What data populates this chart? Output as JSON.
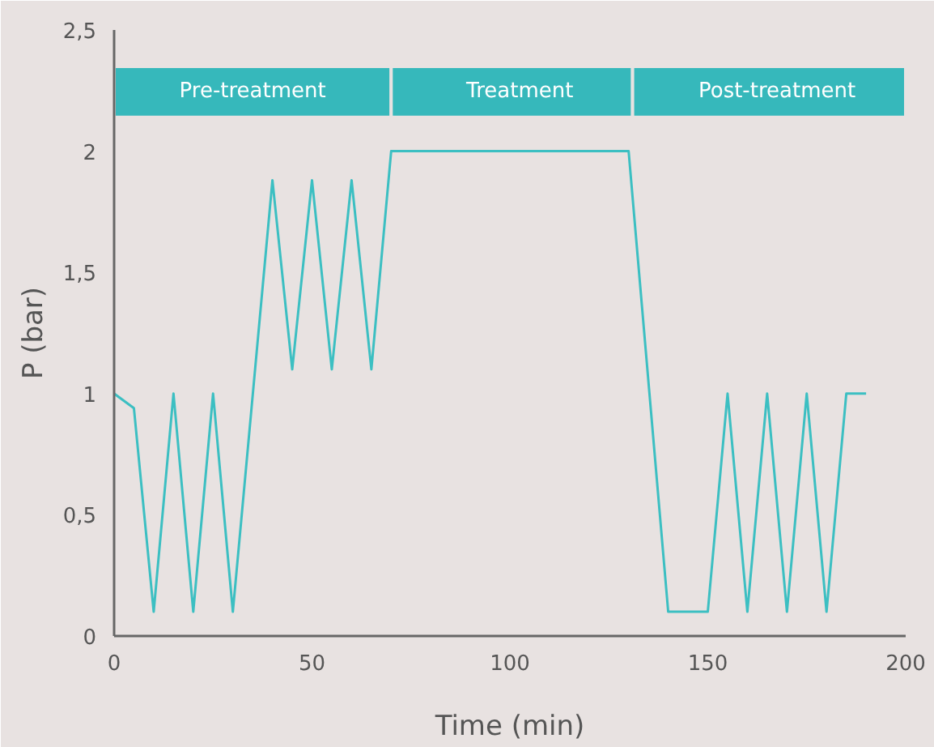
{
  "chart_data": {
    "type": "line",
    "xlabel": "Time (min)",
    "ylabel": "P (bar)",
    "x": [
      0,
      5,
      10,
      15,
      20,
      25,
      30,
      40,
      45,
      50,
      55,
      60,
      65,
      70,
      130,
      140,
      150,
      155,
      160,
      165,
      170,
      175,
      180,
      185,
      190
    ],
    "series": [
      {
        "color": "#3cbfc2",
        "values": [
          1,
          0.94,
          0.1,
          1,
          0.1,
          1,
          0.1,
          1.88,
          1.1,
          1.88,
          1.1,
          1.88,
          1.1,
          2,
          2,
          0.1,
          0.1,
          1,
          0.1,
          1,
          0.1,
          1,
          0.1,
          1,
          1
        ]
      }
    ],
    "xlim": [
      0,
      200
    ],
    "ylim": [
      0,
      2.5
    ],
    "xticks": [
      0,
      50,
      100,
      150,
      200
    ],
    "yticks": [
      0,
      {
        "value": 0.5,
        "label": "0,5"
      },
      1,
      {
        "value": 1.5,
        "label": "1,5"
      },
      2,
      {
        "value": 2.5,
        "label": "2,5"
      }
    ],
    "bands": [
      {
        "axis": "x",
        "from": 0,
        "to": 70,
        "label": "Pre-treatment",
        "color": "#36b8bb"
      },
      {
        "axis": "x",
        "from": 70,
        "to": 131,
        "label": "Treatment",
        "color": "#36b8bb"
      },
      {
        "axis": "x",
        "from": 131,
        "to": 200,
        "label": "Post-treatment",
        "color": "#36b8bb"
      }
    ],
    "grid": false,
    "marker": "none",
    "line_style": "solid"
  }
}
